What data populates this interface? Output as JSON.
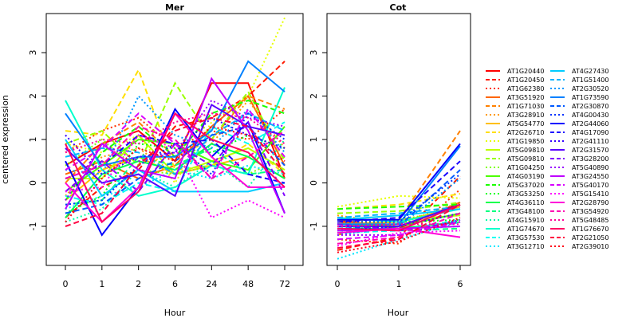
{
  "chart_data": [
    {
      "type": "line",
      "title": "Mer",
      "xlabel": "Hour",
      "ylabel": "centered expression",
      "categories": [
        "0",
        "1",
        "2",
        "6",
        "24",
        "48",
        "72"
      ],
      "ylim": [
        -1.9,
        3.9
      ],
      "yticks": [
        -1,
        0,
        1,
        2,
        3
      ],
      "grid": false
    },
    {
      "type": "line",
      "title": "Cot",
      "xlabel": "Hour",
      "categories": [
        "0",
        "1",
        "6"
      ],
      "ylim": [
        -1.9,
        3.9
      ],
      "yticks": [
        -1,
        0,
        1,
        2,
        3
      ],
      "grid": false
    }
  ],
  "series": [
    {
      "name": "AT1G20440",
      "color": "#ff0000",
      "dash": "solid",
      "mer": [
        0.4,
        0.9,
        1.2,
        0.5,
        2.3,
        2.3,
        0.1
      ],
      "cot": [
        -0.85,
        -1.05,
        -0.45
      ]
    },
    {
      "name": "AT1G20450",
      "color": "#ff1a00",
      "dash": "dashed",
      "mer": [
        -0.8,
        -0.1,
        0.3,
        1.3,
        1.5,
        2.0,
        2.8
      ],
      "cot": [
        -1.55,
        -1.25,
        0.15
      ]
    },
    {
      "name": "AT1G62380",
      "color": "#ff3300",
      "dash": "dotted",
      "mer": [
        0.7,
        1.2,
        1.5,
        0.8,
        1.2,
        1.0,
        1.7
      ],
      "cot": [
        -1.3,
        -1.4,
        -0.15
      ]
    },
    {
      "name": "AT3G51920",
      "color": "#ff6600",
      "dash": "solid",
      "mer": [
        0.2,
        0.5,
        0.1,
        0.4,
        1.3,
        2.0,
        0.4
      ],
      "cot": [
        -0.9,
        -1.0,
        -0.5
      ]
    },
    {
      "name": "AT1G71030",
      "color": "#ff8000",
      "dash": "dashed",
      "mer": [
        0.0,
        0.9,
        1.4,
        0.6,
        1.0,
        2.0,
        1.7
      ],
      "cot": [
        -1.2,
        -0.85,
        1.2
      ]
    },
    {
      "name": "AT3G28910",
      "color": "#ff9900",
      "dash": "dotted",
      "mer": [
        -0.3,
        0.6,
        0.8,
        0.2,
        0.9,
        1.9,
        0.8
      ],
      "cot": [
        -0.75,
        -0.95,
        -0.45
      ]
    },
    {
      "name": "AT5G54770",
      "color": "#ffbf00",
      "dash": "solid",
      "mer": [
        -0.4,
        0.3,
        0.6,
        0.2,
        0.4,
        0.6,
        0.1
      ],
      "cot": [
        -0.95,
        -0.9,
        -0.55
      ]
    },
    {
      "name": "AT2G26710",
      "color": "#ffdf00",
      "dash": "dashed",
      "mer": [
        1.2,
        1.1,
        2.6,
        0.3,
        0.4,
        0.9,
        0.2
      ],
      "cot": [
        -0.6,
        -0.5,
        -0.25
      ]
    },
    {
      "name": "AT1G19850",
      "color": "#e6ff00",
      "dash": "dotted",
      "mer": [
        0.9,
        0.7,
        1.1,
        0.0,
        1.4,
        2.0,
        3.8
      ],
      "cot": [
        -0.55,
        -0.3,
        -0.35
      ]
    },
    {
      "name": "AT5G09810",
      "color": "#bfff00",
      "dash": "solid",
      "mer": [
        0.1,
        0.1,
        1.1,
        0.2,
        0.5,
        0.8,
        0.3
      ],
      "cot": [
        -0.85,
        -0.85,
        -0.75
      ]
    },
    {
      "name": "AT5G09810",
      "color": "#99ff00",
      "dash": "dashed",
      "mer": [
        0.9,
        1.2,
        0.4,
        2.3,
        1.0,
        2.1,
        0.5
      ],
      "cot": [
        -0.7,
        -0.65,
        -0.45
      ]
    },
    {
      "name": "AT1G04250",
      "color": "#80ff00",
      "dash": "dotted",
      "mer": [
        0.4,
        1.0,
        0.3,
        0.2,
        0.4,
        0.2,
        0.6
      ],
      "cot": [
        -0.9,
        -0.85,
        -0.6
      ]
    },
    {
      "name": "AT4G03190",
      "color": "#4dff00",
      "dash": "solid",
      "mer": [
        -0.2,
        0.4,
        1.0,
        0.9,
        0.5,
        0.3,
        1.3
      ],
      "cot": [
        -0.95,
        -1.0,
        -0.7
      ]
    },
    {
      "name": "AT5G37020",
      "color": "#1aff00",
      "dash": "dashed",
      "mer": [
        -0.4,
        0.7,
        1.3,
        0.6,
        1.6,
        1.9,
        1.6
      ],
      "cot": [
        -0.6,
        -0.55,
        -0.5
      ]
    },
    {
      "name": "AT3G53250",
      "color": "#00ff1a",
      "dash": "dotted",
      "mer": [
        -0.7,
        -0.3,
        0.9,
        0.8,
        0.7,
        1.1,
        0.8
      ],
      "cot": [
        -0.9,
        -0.9,
        -0.85
      ]
    },
    {
      "name": "AT4G36110",
      "color": "#00ff4d",
      "dash": "solid",
      "mer": [
        -0.8,
        0.2,
        0.5,
        0.3,
        0.9,
        0.6,
        0.1
      ],
      "cot": [
        -1.05,
        -1.05,
        -0.9
      ]
    },
    {
      "name": "AT3G48100",
      "color": "#00ff80",
      "dash": "dashed",
      "mer": [
        -0.5,
        -0.4,
        0.6,
        0.4,
        0.8,
        0.2,
        0.3
      ],
      "cot": [
        -1.1,
        -1.1,
        -1.05
      ]
    },
    {
      "name": "AT4G15910",
      "color": "#00ffa6",
      "dash": "dotted",
      "mer": [
        -0.9,
        -0.6,
        0.3,
        -0.1,
        0.5,
        -0.1,
        1.0
      ],
      "cot": [
        -1.0,
        -1.05,
        -1.0
      ]
    },
    {
      "name": "AT1G74670",
      "color": "#00ffcc",
      "dash": "solid",
      "mer": [
        1.9,
        0.3,
        -0.3,
        -0.1,
        0.4,
        0.2,
        2.2
      ],
      "cot": [
        -0.8,
        -0.9,
        -0.6
      ]
    },
    {
      "name": "AT3G57530",
      "color": "#00fff2",
      "dash": "dashed",
      "mer": [
        -0.3,
        -0.5,
        0.0,
        -0.2,
        1.3,
        0.9,
        1.4
      ],
      "cot": [
        -1.15,
        -1.1,
        -0.85
      ]
    },
    {
      "name": "AT3G12710",
      "color": "#00e6ff",
      "dash": "dotted",
      "mer": [
        -0.6,
        -0.3,
        -0.1,
        0.3,
        0.1,
        0.4,
        0.2
      ],
      "cot": [
        -1.75,
        -1.3,
        -0.9
      ]
    },
    {
      "name": "AT4G27430",
      "color": "#00ccff",
      "dash": "solid",
      "mer": [
        1.0,
        -0.3,
        0.3,
        -0.2,
        -0.2,
        -0.2,
        0.0
      ],
      "cot": [
        -0.85,
        -0.75,
        -0.6
      ]
    },
    {
      "name": "AT1G51400",
      "color": "#00b3ff",
      "dash": "dashed",
      "mer": [
        0.6,
        0.8,
        0.7,
        0.2,
        1.1,
        1.6,
        1.2
      ],
      "cot": [
        -0.8,
        -0.7,
        -0.55
      ]
    },
    {
      "name": "AT2G30520",
      "color": "#0099ff",
      "dash": "dotted",
      "mer": [
        0.3,
        0.2,
        2.0,
        1.1,
        0.8,
        1.7,
        0.7
      ],
      "cot": [
        -1.2,
        -1.0,
        0.1
      ]
    },
    {
      "name": "AT1G73590",
      "color": "#0080ff",
      "dash": "solid",
      "mer": [
        1.6,
        0.4,
        0.6,
        0.6,
        1.2,
        2.8,
        2.1
      ],
      "cot": [
        -0.95,
        -0.95,
        0.85
      ]
    },
    {
      "name": "AT2G30870",
      "color": "#0059ff",
      "dash": "dashed",
      "mer": [
        -0.7,
        -0.5,
        0.1,
        0.5,
        1.1,
        1.3,
        0.4
      ],
      "cot": [
        -1.05,
        -1.0,
        0.3
      ]
    },
    {
      "name": "AT4G00430",
      "color": "#0033ff",
      "dash": "dotted",
      "mer": [
        -0.5,
        -0.4,
        0.4,
        0.9,
        0.2,
        1.6,
        1.0
      ],
      "cot": [
        -0.9,
        -0.9,
        0.2
      ]
    },
    {
      "name": "AT2G44060",
      "color": "#0000ff",
      "dash": "solid",
      "mer": [
        0.5,
        -1.2,
        -0.1,
        1.7,
        0.6,
        1.4,
        -0.7
      ],
      "cot": [
        -0.85,
        -0.85,
        0.9
      ]
    },
    {
      "name": "AT4G17090",
      "color": "#1a00ff",
      "dash": "dashed",
      "mer": [
        0.1,
        0.4,
        1.1,
        0.9,
        1.0,
        0.2,
        0.0
      ],
      "cot": [
        -0.9,
        -0.8,
        0.5
      ]
    },
    {
      "name": "AT2G41110",
      "color": "#3300ff",
      "dash": "dotted",
      "mer": [
        1.1,
        0.2,
        0.6,
        0.7,
        1.5,
        1.1,
        0.8
      ],
      "cot": [
        -1.1,
        -1.0,
        -0.7
      ]
    },
    {
      "name": "AT2G31570",
      "color": "#5900ff",
      "dash": "solid",
      "mer": [
        0.8,
        0.0,
        0.2,
        -0.3,
        1.8,
        1.3,
        1.1
      ],
      "cot": [
        -1.0,
        -1.0,
        -0.5
      ]
    },
    {
      "name": "AT3G28200",
      "color": "#8000ff",
      "dash": "dashed",
      "mer": [
        -0.2,
        0.5,
        -0.2,
        0.9,
        0.4,
        1.4,
        -0.3
      ],
      "cot": [
        -0.95,
        -1.1,
        -0.9
      ]
    },
    {
      "name": "AT5G40890",
      "color": "#9900ff",
      "dash": "dotted",
      "mer": [
        -0.4,
        0.9,
        0.5,
        0.7,
        1.9,
        1.5,
        1.3
      ],
      "cot": [
        -1.2,
        -1.2,
        -0.85
      ]
    },
    {
      "name": "AT3G24550",
      "color": "#bf00ff",
      "dash": "solid",
      "mer": [
        -0.6,
        0.9,
        0.3,
        0.1,
        2.4,
        1.2,
        -0.7
      ],
      "cot": [
        -1.1,
        -1.05,
        -1.0
      ]
    },
    {
      "name": "AT5G40170",
      "color": "#d900ff",
      "dash": "dashed",
      "mer": [
        0.3,
        0.8,
        1.6,
        0.9,
        0.1,
        1.7,
        0.6
      ],
      "cot": [
        -1.3,
        -1.2,
        -0.9
      ]
    },
    {
      "name": "AT5G15410",
      "color": "#ff00ff",
      "dash": "dotted",
      "mer": [
        -0.2,
        -0.1,
        1.1,
        0.8,
        -0.8,
        -0.4,
        -0.8
      ],
      "cot": [
        -1.45,
        -1.15,
        -1.1
      ]
    },
    {
      "name": "AT2G28790",
      "color": "#ff00d9",
      "dash": "solid",
      "mer": [
        0.0,
        -0.9,
        -0.1,
        1.6,
        0.6,
        -0.1,
        -0.1
      ],
      "cot": [
        -1.15,
        -1.05,
        -1.25
      ]
    },
    {
      "name": "AT3G54920",
      "color": "#ff00b3",
      "dash": "dashed",
      "mer": [
        0.1,
        0.4,
        1.3,
        1.0,
        0.1,
        0.6,
        1.2
      ],
      "cot": [
        -1.4,
        -1.25,
        -0.7
      ]
    },
    {
      "name": "AT5G48485",
      "color": "#ff0099",
      "dash": "dotted",
      "mer": [
        0.7,
        1.0,
        0.9,
        1.4,
        1.6,
        1.5,
        0.9
      ],
      "cot": [
        -1.0,
        -0.95,
        -0.95
      ]
    },
    {
      "name": "AT1G76670",
      "color": "#ff0066",
      "dash": "solid",
      "mer": [
        0.9,
        -0.9,
        -0.2,
        1.6,
        1.0,
        0.7,
        -0.1
      ],
      "cot": [
        -1.05,
        -1.1,
        -0.5
      ]
    },
    {
      "name": "AT2G21050",
      "color": "#ff0040",
      "dash": "dashed",
      "mer": [
        -1.0,
        -0.7,
        0.4,
        1.2,
        1.5,
        1.3,
        0.2
      ],
      "cot": [
        -1.5,
        -1.3,
        -0.5
      ]
    },
    {
      "name": "AT2G39010",
      "color": "#ff0019",
      "dash": "dotted",
      "mer": [
        -0.9,
        0.1,
        0.8,
        0.5,
        1.3,
        1.1,
        0.5
      ],
      "cot": [
        -1.6,
        -1.35,
        -0.8
      ]
    }
  ]
}
